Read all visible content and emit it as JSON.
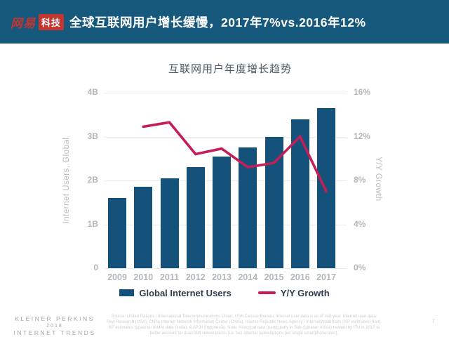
{
  "header": {
    "logo_brand": "网易",
    "logo_badge": "科技",
    "title": "全球互联网用户增长缓慢，2017年7%vs.2016年12%"
  },
  "chart_data": {
    "type": "bar",
    "title": "互联网用户年度增长趋势",
    "categories": [
      "2009",
      "2010",
      "2011",
      "2012",
      "2013",
      "2014",
      "2015",
      "2016",
      "2017"
    ],
    "series": [
      {
        "name": "Global Internet Users",
        "type": "bar",
        "axis": "left",
        "color": "#14527B",
        "values": [
          1.6,
          1.85,
          2.05,
          2.3,
          2.55,
          2.75,
          3.0,
          3.4,
          3.65
        ]
      },
      {
        "name": "Y/Y Growth",
        "type": "line",
        "axis": "right",
        "color": "#C41E56",
        "values": [
          null,
          12.9,
          13.3,
          10.4,
          10.9,
          9.2,
          9.6,
          12.0,
          7.0
        ]
      }
    ],
    "left_axis": {
      "label": "Internet Users, Global",
      "unit": "B",
      "min": 0,
      "max": 4,
      "ticks": [
        "0",
        "1B",
        "2B",
        "3B",
        "4B"
      ]
    },
    "right_axis": {
      "label": "Y/Y Growth",
      "unit": "%",
      "min": 0,
      "max": 16,
      "ticks": [
        "0%",
        "4%",
        "8%",
        "12%",
        "16%"
      ]
    },
    "grid": true,
    "legend_position": "bottom"
  },
  "footer": {
    "brand_line1": "KLEINER PERKINS",
    "brand_line2": "2018",
    "brand_line3": "INTERNET TRENDS",
    "source": "Source: United Nations / International Telecommunications Union, USA Census Bureau. Internet user data is as of mid-year. Internet user data: Pew Research (USA), China Internet Network Information Center (China), Islamic Republic News Agency / InternetWorldStats / KP estimates (Iran). KP estimates based on IAMAI data (India), & APJII (Indonesia). Note: Historical data (particularly in Sub-Saharan Africa) revised by ITU in 2017 to better account for dual-SIM subscriptions (i.e. two Internet subscriptions per single smartphone user).",
    "page_number": "7"
  },
  "colors": {
    "header_background": "#17597C",
    "logo_red": "#C53530",
    "bar_blue": "#14527B",
    "line_red": "#C41E56",
    "axis_gray": "#B2B7BB",
    "gridline_gray": "#E9EAEB"
  }
}
